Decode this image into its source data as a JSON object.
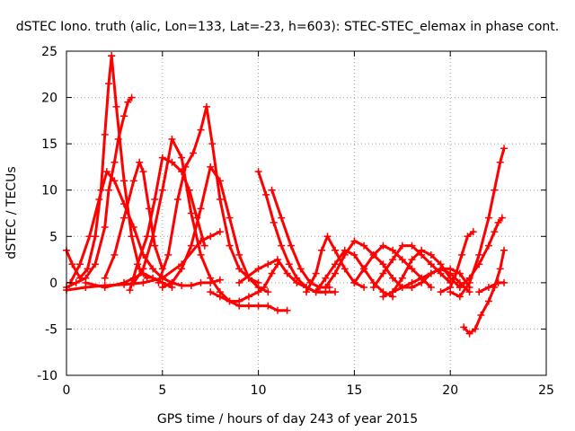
{
  "chart_data": {
    "type": "scatter",
    "title": "dSTEC Iono. truth (alic, Lon=133, Lat=-23, h=603): STEC-STEC_elemax in phase cont.",
    "xlabel": "GPS time / hours of day 243 of year 2015",
    "ylabel": "dSTEC  / TECUs",
    "xlim": [
      0,
      25
    ],
    "ylim": [
      -10,
      25
    ],
    "xticks": [
      0,
      5,
      10,
      15,
      20,
      25
    ],
    "yticks": [
      -10,
      -5,
      0,
      5,
      10,
      15,
      20,
      25
    ],
    "grid": true,
    "legend": "none",
    "marker": "plus",
    "series_color": "#ff0000",
    "series": [
      {
        "x": [
          0.0,
          0.3,
          0.7,
          1.1,
          1.5,
          1.8,
          2.0,
          2.2,
          2.35
        ],
        "y": [
          3.5,
          2.0,
          0.5,
          1.5,
          5.0,
          10.0,
          16.0,
          21.5,
          24.5
        ]
      },
      {
        "x": [
          2.35,
          2.6,
          3.0,
          3.4,
          3.8,
          4.2
        ],
        "y": [
          24.5,
          19.0,
          11.0,
          5.0,
          1.5,
          0.5
        ]
      },
      {
        "x": [
          0.0,
          0.5,
          1.0,
          1.5,
          2.0,
          2.2,
          2.5,
          2.7,
          3.0,
          3.2,
          3.4
        ],
        "y": [
          -0.5,
          0.0,
          0.5,
          2.0,
          6.0,
          10.0,
          13.0,
          15.5,
          18.0,
          19.5,
          20.0
        ]
      },
      {
        "x": [
          0.2,
          0.7,
          1.2,
          1.7,
          2.1,
          2.5,
          3.0,
          3.5,
          4.0,
          4.5,
          5.0,
          5.5,
          6.0,
          6.5,
          7.0,
          7.5,
          8.0
        ],
        "y": [
          0.0,
          2.0,
          5.0,
          9.0,
          12.0,
          11.0,
          8.5,
          6.0,
          3.0,
          1.5,
          0.5,
          0.0,
          -0.3,
          -0.3,
          0.0,
          0.0,
          0.3
        ]
      },
      {
        "x": [
          0.0,
          1.0,
          2.0,
          3.0,
          4.0,
          5.0,
          6.0,
          7.0,
          7.5,
          8.0
        ],
        "y": [
          -0.8,
          -0.5,
          -0.3,
          -0.2,
          0.0,
          0.5,
          2.0,
          4.5,
          5.0,
          5.5
        ]
      },
      {
        "x": [
          1.0,
          2.0,
          3.0,
          3.5,
          4.0,
          4.5,
          5.0,
          5.5
        ],
        "y": [
          0.0,
          -0.5,
          0.0,
          0.5,
          1.0,
          0.5,
          0.0,
          -0.5
        ]
      },
      {
        "x": [
          3.5,
          4.0,
          4.5,
          5.0,
          5.5,
          6.0,
          6.5,
          7.0,
          7.5,
          8.0,
          8.5,
          9.0,
          9.5,
          10.0,
          10.5,
          11.0,
          11.5
        ],
        "y": [
          0.0,
          1.5,
          5.0,
          10.0,
          15.5,
          13.5,
          7.5,
          3.0,
          0.5,
          -1.0,
          -2.0,
          -2.5,
          -2.5,
          -2.5,
          -2.5,
          -3.0,
          -3.0
        ]
      },
      {
        "x": [
          2.0,
          2.5,
          3.0,
          3.5,
          3.8,
          4.0,
          4.3,
          4.6,
          5.0
        ],
        "y": [
          0.5,
          3.0,
          7.0,
          11.0,
          13.0,
          12.0,
          8.0,
          4.0,
          1.5
        ]
      },
      {
        "x": [
          3.3,
          3.7,
          4.2,
          4.6,
          5.0,
          5.5,
          6.0,
          6.4,
          6.8,
          7.2
        ],
        "y": [
          -0.8,
          2.0,
          5.0,
          9.0,
          13.5,
          13.0,
          12.0,
          10.0,
          7.0,
          4.0
        ]
      },
      {
        "x": [
          4.8,
          5.3,
          5.8,
          6.2,
          6.6,
          7.0,
          7.3,
          7.6,
          8.0,
          8.5,
          9.0,
          9.5,
          10.0
        ],
        "y": [
          0.0,
          3.0,
          9.0,
          12.5,
          14.0,
          16.5,
          19.0,
          15.0,
          9.0,
          4.0,
          1.5,
          0.5,
          0.0
        ]
      },
      {
        "x": [
          5.0,
          5.5,
          6.0,
          6.5,
          7.0,
          7.5,
          8.0,
          8.5,
          9.0,
          9.5,
          10.0,
          10.5
        ],
        "y": [
          -0.5,
          0.0,
          1.5,
          4.0,
          8.0,
          12.5,
          11.0,
          7.0,
          3.0,
          0.5,
          -0.5,
          -1.0
        ]
      },
      {
        "x": [
          7.5,
          8.0,
          8.5,
          9.0,
          9.5,
          10.0,
          10.3,
          10.7,
          11.0
        ],
        "y": [
          -1.0,
          -1.5,
          -2.0,
          -2.0,
          -1.5,
          -1.0,
          -0.5,
          1.0,
          2.0
        ]
      },
      {
        "x": [
          10.0,
          10.4,
          10.8,
          11.2,
          11.6,
          12.0,
          12.5,
          13.0,
          13.5
        ],
        "y": [
          12.0,
          9.5,
          6.5,
          4.0,
          2.0,
          0.5,
          -0.5,
          -1.0,
          -1.0
        ]
      },
      {
        "x": [
          10.7,
          11.2,
          11.7,
          12.2,
          12.7,
          13.2,
          13.7
        ],
        "y": [
          10.0,
          7.0,
          4.0,
          1.5,
          0.0,
          -0.5,
          -0.5
        ]
      },
      {
        "x": [
          9.0,
          10.0,
          10.5,
          11.0,
          11.5,
          12.0,
          12.5,
          13.0,
          13.5,
          14.0
        ],
        "y": [
          0.0,
          1.5,
          2.0,
          2.5,
          1.0,
          0.0,
          -0.5,
          -1.0,
          -1.0,
          -1.0
        ]
      },
      {
        "x": [
          12.5,
          13.0,
          13.3,
          13.6,
          14.0,
          14.5,
          15.0,
          15.5
        ],
        "y": [
          -1.0,
          1.0,
          3.5,
          5.0,
          3.5,
          1.5,
          0.0,
          -0.5
        ]
      },
      {
        "x": [
          13.0,
          13.5,
          14.0,
          14.5,
          15.0,
          15.5,
          16.0,
          16.5,
          17.0
        ],
        "y": [
          -1.0,
          0.5,
          2.0,
          3.5,
          3.0,
          1.5,
          0.0,
          -1.0,
          -1.5
        ]
      },
      {
        "x": [
          13.5,
          14.0,
          14.5,
          15.0,
          15.5,
          16.0,
          16.5,
          17.0,
          17.5,
          18.0
        ],
        "y": [
          -0.5,
          1.0,
          3.0,
          4.5,
          4.0,
          3.0,
          2.0,
          0.5,
          -0.5,
          -0.5
        ]
      },
      {
        "x": [
          15.0,
          15.5,
          16.0,
          16.5,
          17.0,
          17.5,
          18.0,
          18.5,
          19.0
        ],
        "y": [
          0.0,
          1.5,
          3.0,
          4.0,
          3.5,
          2.5,
          1.5,
          0.5,
          -0.5
        ]
      },
      {
        "x": [
          16.0,
          16.5,
          17.0,
          17.5,
          18.0,
          18.5,
          19.0,
          19.5,
          20.0
        ],
        "y": [
          -0.5,
          1.0,
          2.5,
          4.0,
          4.0,
          3.0,
          2.0,
          1.0,
          0.0
        ]
      },
      {
        "x": [
          16.5,
          17.0,
          17.5,
          18.0,
          18.5,
          19.0,
          19.5,
          20.0,
          20.5
        ],
        "y": [
          -1.5,
          -1.0,
          0.5,
          2.5,
          3.5,
          3.0,
          2.0,
          0.5,
          -0.5
        ]
      },
      {
        "x": [
          17.0,
          17.5,
          18.0,
          18.5,
          19.0,
          19.5,
          20.0,
          20.5,
          21.0
        ],
        "y": [
          -1.0,
          -0.5,
          0.0,
          0.5,
          1.0,
          1.5,
          1.5,
          1.0,
          -0.5
        ]
      },
      {
        "x": [
          18.0,
          18.5,
          19.0,
          19.5,
          20.0,
          20.5,
          21.0
        ],
        "y": [
          -0.5,
          0.0,
          1.0,
          1.5,
          1.0,
          0.0,
          -1.0
        ]
      },
      {
        "x": [
          19.5,
          20.0,
          20.3,
          20.6,
          20.9,
          21.2
        ],
        "y": [
          -1.0,
          -0.5,
          1.0,
          3.0,
          5.0,
          5.5
        ]
      },
      {
        "x": [
          20.0,
          20.5,
          21.0,
          21.5,
          22.0,
          22.3,
          22.6,
          22.8
        ],
        "y": [
          -1.0,
          -1.5,
          0.0,
          3.0,
          7.0,
          10.0,
          13.0,
          14.5
        ]
      },
      {
        "x": [
          20.5,
          21.0,
          21.5,
          22.0,
          22.3,
          22.5,
          22.7
        ],
        "y": [
          -0.5,
          0.5,
          2.0,
          4.0,
          5.5,
          6.5,
          7.0
        ]
      },
      {
        "x": [
          20.7,
          21.0,
          21.3,
          21.6,
          22.0,
          22.3,
          22.6,
          22.8
        ],
        "y": [
          -4.8,
          -5.5,
          -5.0,
          -3.5,
          -2.0,
          -0.5,
          1.5,
          3.5
        ]
      },
      {
        "x": [
          21.5,
          22.0,
          22.5,
          22.8
        ],
        "y": [
          -1.0,
          -0.5,
          0.0,
          0.0
        ]
      }
    ]
  }
}
